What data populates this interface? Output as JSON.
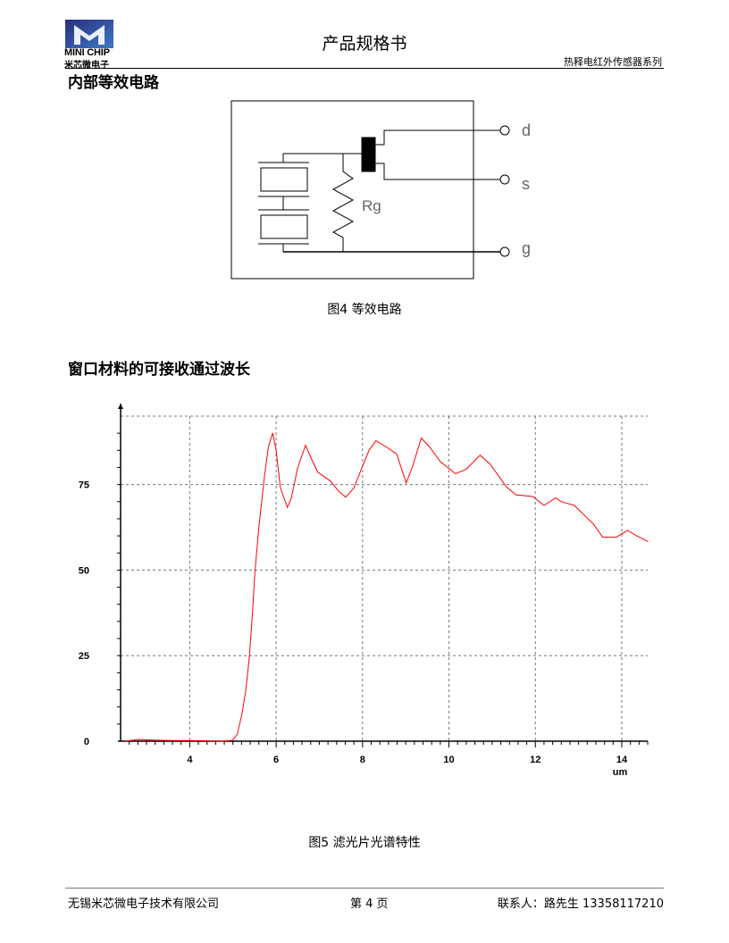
{
  "header": {
    "logo_text_en": "MINI CHIP",
    "logo_text_cn": "米芯微电子",
    "title": "产品规格书",
    "series": "热释电红外传感器系列"
  },
  "sections": [
    {
      "heading": "内部等效电路",
      "caption": "图4  等效电路"
    },
    {
      "heading": "窗口材料的可接收通过波长",
      "caption": "图5  滤光片光谱特性"
    }
  ],
  "circuit": {
    "resistor_label": "Rg",
    "terminals": [
      "d",
      "s",
      "g"
    ]
  },
  "chart_data": {
    "type": "line",
    "title": "",
    "xlabel": "um",
    "ylabel": "",
    "xlim": [
      2.4,
      14.6
    ],
    "ylim": [
      0,
      95
    ],
    "x_ticks": [
      "4",
      "6",
      "8",
      "10",
      "12",
      "14"
    ],
    "y_ticks": [
      "0",
      "25",
      "50",
      "75"
    ],
    "grid": true,
    "legend": "none",
    "line_color": "#ff0000",
    "series": [
      {
        "x": [
          2.5,
          2.8,
          3.2,
          3.6,
          4.0,
          4.4,
          4.8,
          4.99,
          5.1,
          5.21,
          5.3,
          5.38,
          5.45,
          5.51,
          5.6,
          5.73,
          5.82,
          5.92,
          6.0,
          6.1,
          6.26,
          6.35,
          6.5,
          6.68,
          6.8,
          6.96,
          7.26,
          7.45,
          7.61,
          7.8,
          8.0,
          8.15,
          8.31,
          8.55,
          8.79,
          9.01,
          9.15,
          9.36,
          9.55,
          9.8,
          10.15,
          10.4,
          10.72,
          10.95,
          11.33,
          11.55,
          11.94,
          12.2,
          12.47,
          12.6,
          12.9,
          13.34,
          13.56,
          13.87,
          14.13,
          14.35,
          14.61
        ],
        "y": [
          0,
          0.5,
          0.3,
          0.2,
          0.2,
          0.1,
          0,
          0.3,
          2,
          8,
          15,
          24.5,
          37,
          49.6,
          62.6,
          77.4,
          86,
          90.1,
          85,
          74,
          68.3,
          71,
          80,
          86.5,
          83,
          78.7,
          76,
          73,
          71.3,
          74,
          80.4,
          85,
          87.8,
          86,
          83.9,
          75.5,
          80,
          88.6,
          86,
          81.7,
          78.2,
          79.5,
          83.6,
          81,
          74.3,
          72,
          71.5,
          68.9,
          71.1,
          70,
          68.9,
          63.5,
          59.6,
          59.6,
          61.6,
          60,
          58.3
        ]
      }
    ]
  },
  "footer": {
    "company": "无锡米芯微电子技术有限公司",
    "page": "第 4 页",
    "contact": "联系人：路先生   13358117210"
  }
}
